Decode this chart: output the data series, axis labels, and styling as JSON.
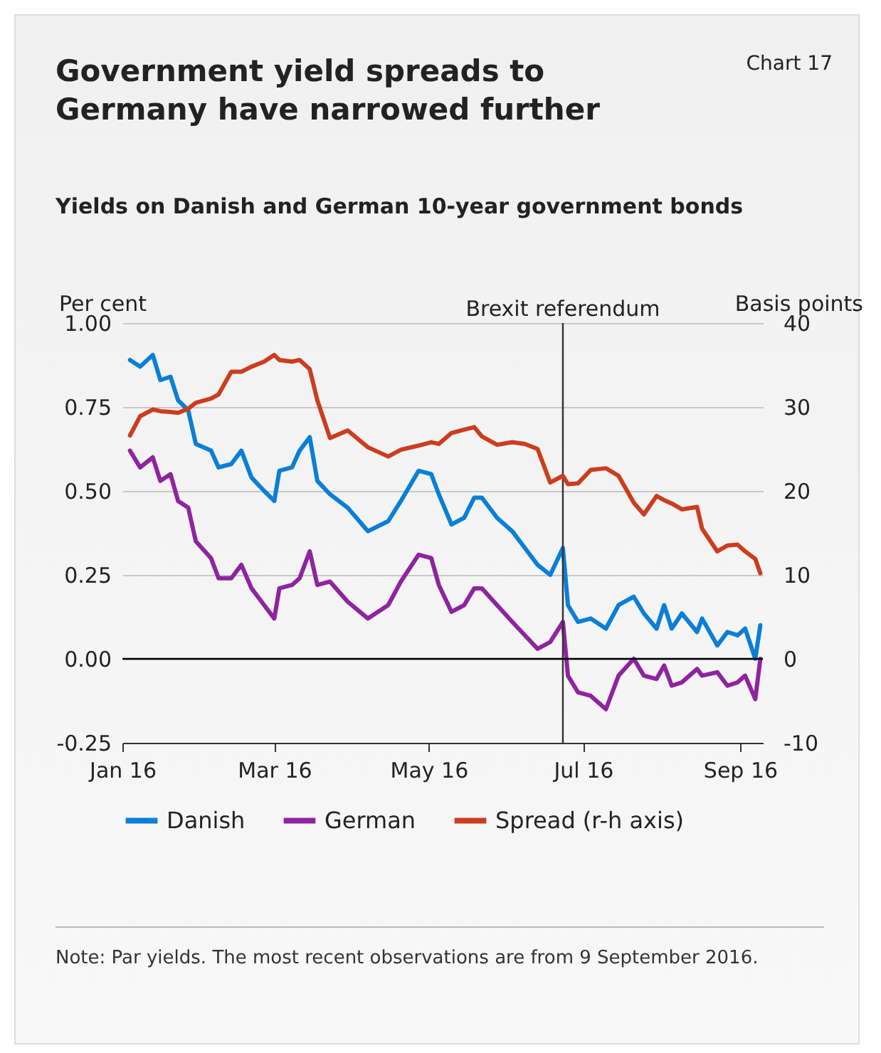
{
  "chart_data": {
    "type": "line",
    "title": "Government yield spreads to Germany have narrowed further",
    "subtitle": "Yields on Danish and German 10-year government bonds",
    "ylabel": "Per cent",
    "y2label": "Basis points",
    "x": [
      "2016-01-04",
      "2016-01-08",
      "2016-01-13",
      "2016-01-16",
      "2016-01-20",
      "2016-01-23",
      "2016-01-27",
      "2016-01-30",
      "2016-02-05",
      "2016-02-08",
      "2016-02-13",
      "2016-02-17",
      "2016-02-21",
      "2016-02-26",
      "2016-03-01",
      "2016-03-03",
      "2016-03-08",
      "2016-03-11",
      "2016-03-15",
      "2016-03-18",
      "2016-03-23",
      "2016-03-30",
      "2016-04-07",
      "2016-04-15",
      "2016-04-20",
      "2016-04-27",
      "2016-05-02",
      "2016-05-05",
      "2016-05-10",
      "2016-05-15",
      "2016-05-19",
      "2016-05-22",
      "2016-05-28",
      "2016-06-03",
      "2016-06-08",
      "2016-06-13",
      "2016-06-18",
      "2016-06-23",
      "2016-06-25",
      "2016-06-29",
      "2016-07-04",
      "2016-07-10",
      "2016-07-15",
      "2016-07-21",
      "2016-07-25",
      "2016-07-30",
      "2016-08-02",
      "2016-08-05",
      "2016-08-09",
      "2016-08-15",
      "2016-08-17",
      "2016-08-23",
      "2016-08-27",
      "2016-08-31",
      "2016-09-03",
      "2016-09-07",
      "2016-09-09"
    ],
    "series": [
      {
        "name": "Danish",
        "color": "#0a7fd6",
        "values": [
          0.89,
          0.87,
          0.905,
          0.83,
          0.84,
          0.77,
          0.74,
          0.64,
          0.62,
          0.57,
          0.58,
          0.62,
          0.54,
          0.5,
          0.47,
          0.56,
          0.57,
          0.62,
          0.66,
          0.53,
          0.49,
          0.45,
          0.38,
          0.41,
          0.47,
          0.56,
          0.55,
          0.49,
          0.4,
          0.42,
          0.48,
          0.48,
          0.42,
          0.38,
          0.33,
          0.28,
          0.25,
          0.33,
          0.16,
          0.11,
          0.12,
          0.09,
          0.16,
          0.185,
          0.135,
          0.09,
          0.16,
          0.09,
          0.135,
          0.08,
          0.12,
          0.04,
          0.08,
          0.07,
          0.09,
          0.0,
          0.1
        ]
      },
      {
        "name": "German",
        "color": "#8e24a0",
        "values": [
          0.62,
          0.57,
          0.6,
          0.53,
          0.55,
          0.47,
          0.45,
          0.35,
          0.3,
          0.24,
          0.24,
          0.28,
          0.21,
          0.16,
          0.12,
          0.21,
          0.22,
          0.24,
          0.32,
          0.22,
          0.23,
          0.17,
          0.12,
          0.16,
          0.23,
          0.31,
          0.3,
          0.22,
          0.14,
          0.16,
          0.21,
          0.21,
          0.16,
          0.11,
          0.07,
          0.03,
          0.05,
          0.11,
          -0.05,
          -0.1,
          -0.11,
          -0.15,
          -0.05,
          0.0,
          -0.05,
          -0.06,
          -0.02,
          -0.08,
          -0.07,
          -0.03,
          -0.05,
          -0.04,
          -0.08,
          -0.07,
          -0.05,
          -0.12,
          0.0
        ]
      },
      {
        "name": "Spread (r-h axis)",
        "color": "#cc3d1f",
        "axis": "y2",
        "values": [
          26.6,
          28.9,
          29.7,
          29.5,
          29.4,
          29.3,
          29.8,
          30.5,
          31.0,
          31.5,
          34.2,
          34.2,
          34.8,
          35.4,
          36.2,
          35.6,
          35.4,
          35.6,
          34.5,
          30.8,
          26.3,
          27.2,
          25.2,
          24.1,
          24.9,
          25.4,
          25.8,
          25.6,
          26.9,
          27.3,
          27.6,
          26.5,
          25.5,
          25.8,
          25.6,
          25.0,
          21.0,
          21.8,
          20.8,
          20.9,
          22.5,
          22.7,
          21.8,
          18.6,
          17.2,
          19.4,
          18.9,
          18.5,
          17.8,
          18.1,
          15.5,
          12.8,
          13.5,
          13.6,
          12.8,
          11.9,
          10.2
        ]
      }
    ],
    "xlim": [
      "2016-01-01",
      "2016-09-10"
    ],
    "xticks": [
      {
        "value": "2016-01-01",
        "label": "Jan 16"
      },
      {
        "value": "2016-03-01",
        "label": "Mar 16"
      },
      {
        "value": "2016-05-01",
        "label": "May 16"
      },
      {
        "value": "2016-07-01",
        "label": "Jul 16"
      },
      {
        "value": "2016-09-01",
        "label": "Sep 16"
      }
    ],
    "ylim": [
      -0.25,
      1.0
    ],
    "yticks": [
      {
        "value": -0.25,
        "label": "-0.25"
      },
      {
        "value": 0,
        "label": "0.00"
      },
      {
        "value": 0.25,
        "label": "0.25"
      },
      {
        "value": 0.5,
        "label": "0.50"
      },
      {
        "value": 0.75,
        "label": "0.75"
      },
      {
        "value": 1,
        "label": "1.00"
      }
    ],
    "y2lim": [
      -10,
      40
    ],
    "y2ticks": [
      -10,
      0,
      10,
      20,
      30,
      40
    ],
    "ref_lines": [
      {
        "axis": "x",
        "value": "2016-06-23",
        "label": "Brexit referendum",
        "color": "#333333"
      },
      {
        "axis": "y",
        "value": 0,
        "color": "#000000"
      }
    ],
    "grid": "y",
    "legend": "bottom",
    "annotations": [
      "Chart 17",
      "Note: Par yields. The most recent observations are from 9 September 2016."
    ]
  }
}
